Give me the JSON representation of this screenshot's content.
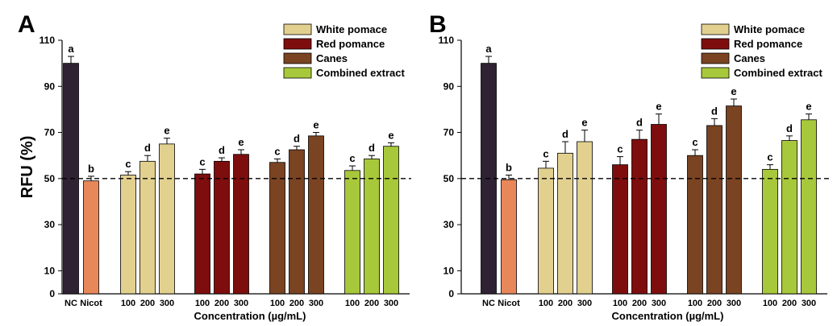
{
  "chart_data": [
    {
      "type": "bar",
      "panel_label": "A",
      "ylabel": "RFU (%)",
      "xlabel": "Concentration (µg/mL)",
      "ylim": [
        0,
        110
      ],
      "yticks": [
        0,
        10,
        30,
        50,
        70,
        90,
        110
      ],
      "reference_line": 50,
      "legend": [
        "White pomace",
        "Red pomance",
        "Canes",
        "Combined extract"
      ],
      "legend_placement": "top-right",
      "colors": {
        "NC": "#2e2233",
        "Nicot": "#e8875a",
        "White pomace": "#e2d08f",
        "Red pomance": "#7e0d0d",
        "Canes": "#7a4322",
        "Combined extract": "#a8c83b"
      },
      "groups": [
        {
          "series": "NC",
          "bars": [
            {
              "label": "NC",
              "value": 100,
              "error": 3,
              "letter": "a"
            }
          ]
        },
        {
          "series": "Nicot",
          "bars": [
            {
              "label": "Nicot",
              "value": 49,
              "error": 2,
              "letter": "b"
            }
          ]
        },
        {
          "series": "White pomace",
          "bars": [
            {
              "label": "100",
              "value": 51.5,
              "error": 1.5,
              "letter": "c"
            },
            {
              "label": "200",
              "value": 57.5,
              "error": 2.5,
              "letter": "d"
            },
            {
              "label": "300",
              "value": 65,
              "error": 2.5,
              "letter": "e"
            }
          ]
        },
        {
          "series": "Red pomance",
          "bars": [
            {
              "label": "100",
              "value": 52,
              "error": 2,
              "letter": "c"
            },
            {
              "label": "200",
              "value": 57.5,
              "error": 1.5,
              "letter": "d"
            },
            {
              "label": "300",
              "value": 60.5,
              "error": 2,
              "letter": "e"
            }
          ]
        },
        {
          "series": "Canes",
          "bars": [
            {
              "label": "100",
              "value": 57,
              "error": 1.5,
              "letter": "c"
            },
            {
              "label": "200",
              "value": 62.5,
              "error": 1.5,
              "letter": "d"
            },
            {
              "label": "300",
              "value": 68.5,
              "error": 1.5,
              "letter": "e"
            }
          ]
        },
        {
          "series": "Combined extract",
          "bars": [
            {
              "label": "100",
              "value": 53.5,
              "error": 2,
              "letter": "c"
            },
            {
              "label": "200",
              "value": 58.5,
              "error": 1.5,
              "letter": "d"
            },
            {
              "label": "300",
              "value": 64,
              "error": 1.5,
              "letter": "e"
            }
          ]
        }
      ]
    },
    {
      "type": "bar",
      "panel_label": "B",
      "ylabel": "",
      "xlabel": "Concentration (µg/mL)",
      "ylim": [
        0,
        110
      ],
      "yticks": [
        0,
        10,
        30,
        50,
        70,
        90,
        110
      ],
      "reference_line": 50,
      "legend": [
        "White pomace",
        "Red pomance",
        "Canes",
        "Combined extract"
      ],
      "legend_placement": "top-right",
      "colors": {
        "NC": "#2e2233",
        "Nicot": "#e8875a",
        "White pomace": "#e2d08f",
        "Red pomance": "#7e0d0d",
        "Canes": "#7a4322",
        "Combined extract": "#a8c83b"
      },
      "groups": [
        {
          "series": "NC",
          "bars": [
            {
              "label": "NC",
              "value": 100,
              "error": 3,
              "letter": "a"
            }
          ]
        },
        {
          "series": "Nicot",
          "bars": [
            {
              "label": "Nicot",
              "value": 49.5,
              "error": 2,
              "letter": "b"
            }
          ]
        },
        {
          "series": "White pomace",
          "bars": [
            {
              "label": "100",
              "value": 54.5,
              "error": 3,
              "letter": "c"
            },
            {
              "label": "200",
              "value": 61,
              "error": 5,
              "letter": "d"
            },
            {
              "label": "300",
              "value": 66,
              "error": 5,
              "letter": "e"
            }
          ]
        },
        {
          "series": "Red pomance",
          "bars": [
            {
              "label": "100",
              "value": 56,
              "error": 3.5,
              "letter": "c"
            },
            {
              "label": "200",
              "value": 67,
              "error": 4,
              "letter": "d"
            },
            {
              "label": "300",
              "value": 73.5,
              "error": 4.5,
              "letter": "e"
            }
          ]
        },
        {
          "series": "Canes",
          "bars": [
            {
              "label": "100",
              "value": 60,
              "error": 2.5,
              "letter": "c"
            },
            {
              "label": "200",
              "value": 73,
              "error": 3,
              "letter": "d"
            },
            {
              "label": "300",
              "value": 81.5,
              "error": 3,
              "letter": "e"
            }
          ]
        },
        {
          "series": "Combined extract",
          "bars": [
            {
              "label": "100",
              "value": 54,
              "error": 2,
              "letter": "c"
            },
            {
              "label": "200",
              "value": 66.5,
              "error": 2,
              "letter": "d"
            },
            {
              "label": "300",
              "value": 75.5,
              "error": 2.5,
              "letter": "e"
            }
          ]
        }
      ]
    }
  ]
}
